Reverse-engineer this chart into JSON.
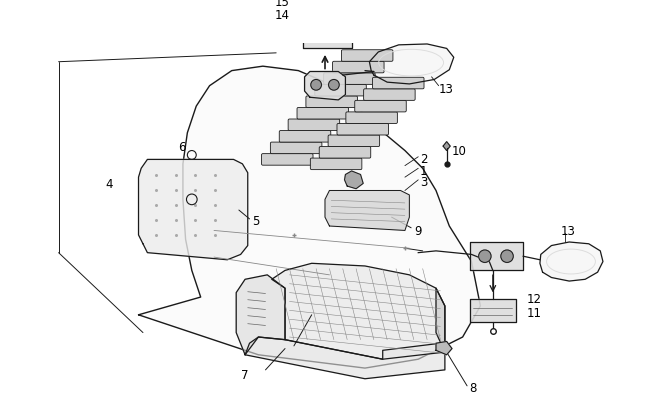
{
  "background_color": "#ffffff",
  "figure_width": 6.5,
  "figure_height": 4.06,
  "dpi": 100,
  "line_color": "#1a1a1a",
  "gray_fill": "#e8e8e8",
  "dark_gray": "#555555"
}
